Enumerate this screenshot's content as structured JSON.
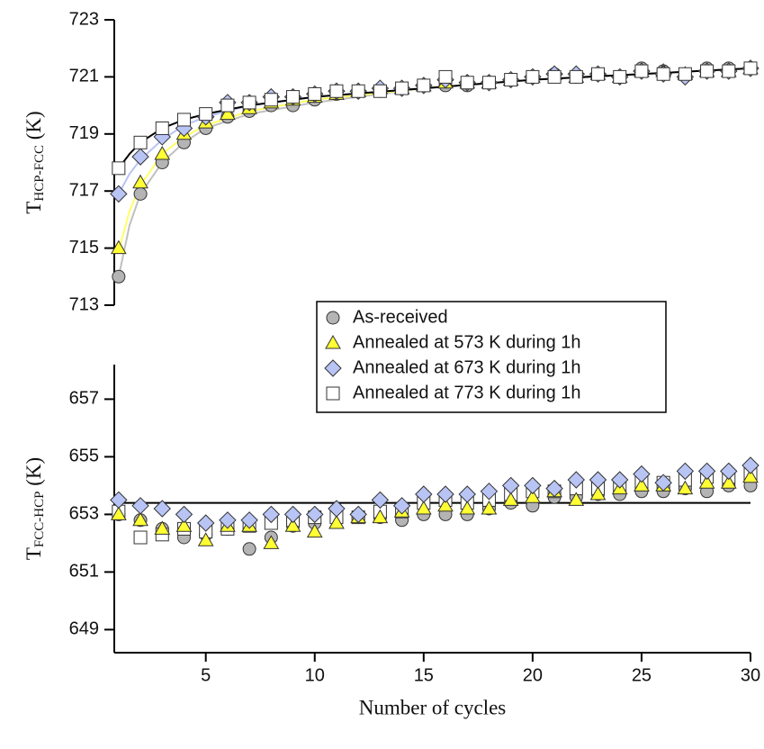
{
  "chart_data": [
    {
      "type": "scatter",
      "ylabel": {
        "main": "T",
        "sub": "HCP-FCC",
        "unit": " (K)"
      },
      "x": [
        1,
        2,
        3,
        4,
        5,
        6,
        7,
        8,
        9,
        10,
        11,
        12,
        13,
        14,
        15,
        16,
        17,
        18,
        19,
        20,
        21,
        22,
        23,
        24,
        25,
        26,
        27,
        28,
        29,
        30
      ],
      "xlim": [
        0.8,
        30
      ],
      "ylim": [
        713,
        723
      ],
      "yticks": [
        713,
        715,
        717,
        719,
        721,
        723
      ],
      "series": [
        {
          "name": "As-received",
          "color": "#b4b4b4",
          "marker": "circle",
          "values": [
            714.0,
            716.9,
            718.0,
            718.7,
            719.2,
            719.6,
            719.8,
            720.0,
            720.0,
            720.2,
            720.4,
            720.5,
            720.5,
            720.6,
            720.7,
            720.7,
            720.7,
            720.8,
            720.9,
            721.0,
            721.1,
            721.0,
            721.1,
            721.0,
            721.3,
            721.2,
            721.1,
            721.3,
            721.3,
            721.3
          ]
        },
        {
          "name": "Annealed at 573 K during 1h",
          "color": "#ffff33",
          "marker": "triangle",
          "values": [
            715.0,
            717.3,
            718.3,
            719.0,
            719.4,
            719.7,
            719.9,
            720.1,
            720.2,
            720.3,
            720.4,
            720.5,
            720.6,
            720.6,
            720.7,
            720.8,
            720.8,
            720.8,
            720.9,
            721.0,
            721.1,
            721.0,
            721.1,
            721.0,
            721.2,
            721.2,
            721.1,
            721.2,
            721.2,
            721.3
          ]
        },
        {
          "name": "Annealed at 673 K during 1h",
          "color": "#b8c4f4",
          "marker": "diamond",
          "values": [
            716.9,
            718.2,
            718.9,
            719.2,
            719.6,
            720.1,
            720.1,
            720.3,
            720.3,
            720.4,
            720.5,
            720.5,
            720.6,
            720.6,
            720.7,
            720.9,
            720.8,
            720.8,
            720.9,
            721.0,
            721.1,
            721.1,
            721.1,
            721.0,
            721.2,
            721.1,
            721.0,
            721.2,
            721.2,
            721.3
          ]
        },
        {
          "name": "Annealed at 773 K during 1h",
          "color": "#ffffff",
          "marker": "square",
          "values": [
            717.8,
            718.7,
            719.2,
            719.5,
            719.7,
            720.0,
            720.1,
            720.2,
            720.3,
            720.4,
            720.5,
            720.5,
            720.5,
            720.6,
            720.7,
            721.0,
            720.8,
            720.8,
            720.9,
            721.0,
            721.0,
            721.0,
            721.1,
            721.0,
            721.2,
            721.1,
            721.1,
            721.2,
            721.2,
            721.3
          ]
        }
      ],
      "fits": {
        "x": [
          1,
          1.5,
          2,
          3,
          4,
          5,
          7,
          10,
          15,
          20,
          25,
          30
        ],
        "lines": [
          {
            "color": "#c0c0c0",
            "values": [
              714.0,
              715.8,
              716.9,
              718.0,
              718.7,
              719.2,
              719.7,
              720.1,
              720.6,
              720.9,
              721.1,
              721.3
            ]
          },
          {
            "color": "#ffff66",
            "values": [
              714.9,
              716.3,
              717.2,
              718.3,
              718.9,
              719.3,
              719.8,
              720.2,
              720.6,
              720.9,
              721.1,
              721.3
            ]
          },
          {
            "color": "#b8c4f4",
            "values": [
              716.9,
              717.6,
              718.1,
              718.8,
              719.3,
              719.6,
              720.0,
              720.3,
              720.6,
              720.9,
              721.1,
              721.3
            ]
          },
          {
            "color": "#000000",
            "values": [
              717.8,
              718.3,
              718.7,
              719.2,
              719.5,
              719.7,
              720.0,
              720.3,
              720.6,
              720.9,
              721.1,
              721.3
            ]
          }
        ]
      }
    },
    {
      "type": "scatter",
      "ylabel": {
        "main": "T",
        "sub": "FCC-HCP",
        "unit": " (K)"
      },
      "xlabel": "Number of cycles",
      "x": [
        1,
        2,
        3,
        4,
        5,
        6,
        7,
        8,
        9,
        10,
        11,
        12,
        13,
        14,
        15,
        16,
        17,
        18,
        19,
        20,
        21,
        22,
        23,
        24,
        25,
        26,
        27,
        28,
        29,
        30
      ],
      "xlim": [
        0.8,
        30
      ],
      "xticks": [
        5,
        10,
        15,
        20,
        25,
        30
      ],
      "ylim": [
        648.2,
        658.2
      ],
      "yticks": [
        649,
        651,
        653,
        655,
        657
      ],
      "hline": {
        "value": 653.4,
        "color": "#000000"
      },
      "series": [
        {
          "color": "#b4b4b4",
          "marker": "circle",
          "values": [
            653.0,
            652.8,
            652.5,
            652.2,
            652.3,
            652.5,
            651.8,
            652.2,
            652.6,
            652.7,
            652.8,
            652.9,
            652.9,
            652.8,
            653.0,
            653.0,
            653.0,
            653.2,
            653.4,
            653.3,
            653.6,
            653.6,
            653.7,
            653.7,
            653.8,
            653.8,
            653.9,
            653.8,
            654.0,
            654.0
          ]
        },
        {
          "color": "#ffffff",
          "marker": "square",
          "values": [
            653.1,
            652.2,
            652.3,
            652.5,
            652.4,
            652.5,
            652.6,
            652.7,
            652.8,
            652.9,
            652.9,
            652.9,
            653.1,
            653.1,
            653.4,
            653.5,
            653.4,
            653.5,
            653.7,
            653.8,
            653.8,
            653.9,
            653.9,
            654.0,
            654.1,
            654.1,
            654.2,
            654.3,
            654.3,
            654.4
          ]
        },
        {
          "color": "#ffff33",
          "marker": "triangle",
          "values": [
            653.0,
            652.8,
            652.5,
            652.6,
            652.1,
            652.6,
            652.6,
            652.0,
            652.6,
            652.4,
            652.7,
            652.9,
            652.9,
            653.1,
            653.2,
            653.3,
            653.2,
            653.2,
            653.5,
            653.6,
            653.8,
            653.5,
            653.7,
            653.9,
            654.0,
            654.0,
            653.9,
            654.1,
            654.1,
            654.3
          ]
        },
        {
          "color": "#b8c4f4",
          "marker": "diamond",
          "values": [
            653.5,
            653.3,
            653.2,
            653.0,
            652.7,
            652.8,
            652.8,
            653.0,
            653.0,
            653.0,
            653.2,
            653.0,
            653.5,
            653.3,
            653.7,
            653.7,
            653.7,
            653.8,
            654.0,
            654.0,
            653.9,
            654.2,
            654.2,
            654.2,
            654.4,
            654.1,
            654.5,
            654.5,
            654.5,
            654.7
          ]
        }
      ]
    }
  ]
}
